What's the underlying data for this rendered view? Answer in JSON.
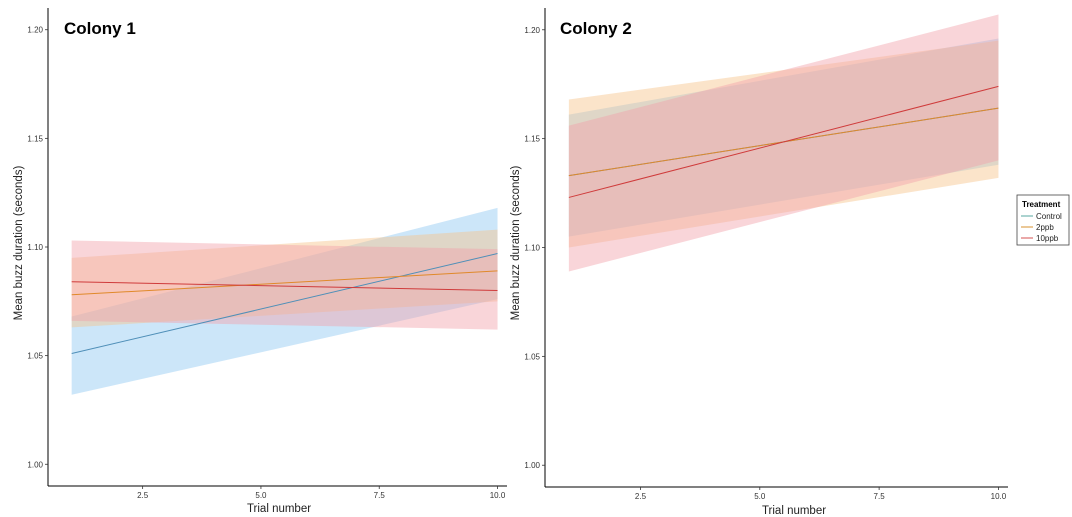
{
  "chart_data": [
    {
      "type": "line",
      "title": "Colony 1",
      "xlabel": "Trial number",
      "ylabel": "Mean buzz duration (seconds)",
      "xlim": [
        0.5,
        10.2
      ],
      "ylim": [
        0.99,
        1.21
      ],
      "x_ticks": [
        2.5,
        5.0,
        7.5,
        10.0
      ],
      "x_tick_labels": [
        "2.5",
        "5.0",
        "7.5",
        "10.0"
      ],
      "y_ticks": [
        1.0,
        1.05,
        1.1,
        1.15,
        1.2
      ],
      "y_tick_labels": [
        "1.00",
        "1.05",
        "1.10",
        "1.15",
        "1.20"
      ],
      "grid": false,
      "series": [
        {
          "key": "control",
          "x": [
            1,
            10
          ],
          "y": [
            1.051,
            1.097
          ],
          "lower": [
            1.032,
            1.076
          ],
          "upper": [
            1.068,
            1.118
          ]
        },
        {
          "key": "2ppb",
          "x": [
            1,
            10
          ],
          "y": [
            1.078,
            1.089
          ],
          "lower": [
            1.063,
            1.075
          ],
          "upper": [
            1.095,
            1.108
          ]
        },
        {
          "key": "10ppb",
          "x": [
            1,
            10
          ],
          "y": [
            1.084,
            1.08
          ],
          "lower": [
            1.066,
            1.062
          ],
          "upper": [
            1.103,
            1.099
          ]
        }
      ]
    },
    {
      "type": "line",
      "title": "Colony 2",
      "xlabel": "Trial number",
      "ylabel": "Mean buzz duration (seconds)",
      "xlim": [
        0.5,
        10.2
      ],
      "ylim": [
        0.99,
        1.21
      ],
      "x_ticks": [
        2.5,
        5.0,
        7.5,
        10.0
      ],
      "x_tick_labels": [
        "2.5",
        "5.0",
        "7.5",
        "10.0"
      ],
      "y_ticks": [
        1.0,
        1.05,
        1.1,
        1.15,
        1.2
      ],
      "y_tick_labels": [
        "1.00",
        "1.05",
        "1.10",
        "1.15",
        "1.20"
      ],
      "grid": false,
      "series": [
        {
          "key": "control",
          "x": [
            1,
            10
          ],
          "y": [
            1.133,
            1.164
          ],
          "lower": [
            1.105,
            1.138
          ],
          "upper": [
            1.161,
            1.196
          ]
        },
        {
          "key": "2ppb",
          "x": [
            1,
            10
          ],
          "y": [
            1.133,
            1.164
          ],
          "lower": [
            1.1,
            1.132
          ],
          "upper": [
            1.168,
            1.195
          ]
        },
        {
          "key": "10ppb",
          "x": [
            1,
            10
          ],
          "y": [
            1.123,
            1.174
          ],
          "lower": [
            1.089,
            1.14
          ],
          "upper": [
            1.156,
            1.207
          ]
        }
      ]
    }
  ],
  "legend": {
    "title": "Treatment",
    "placement": "right",
    "items": [
      {
        "key": "control",
        "label": "Control",
        "color": "#57a7a2"
      },
      {
        "key": "2ppb",
        "label": "2ppb",
        "color": "#d7922f"
      },
      {
        "key": "10ppb",
        "label": "10ppb",
        "color": "#d65151"
      }
    ]
  },
  "band_colors": {
    "control": "#8ec8f2",
    "2ppb": "#f6c48a",
    "10ppb": "#f2a2aa"
  },
  "line_colors": {
    "control": "#4f8fb8",
    "2ppb": "#e0892a",
    "10ppb": "#cf3b3b"
  }
}
